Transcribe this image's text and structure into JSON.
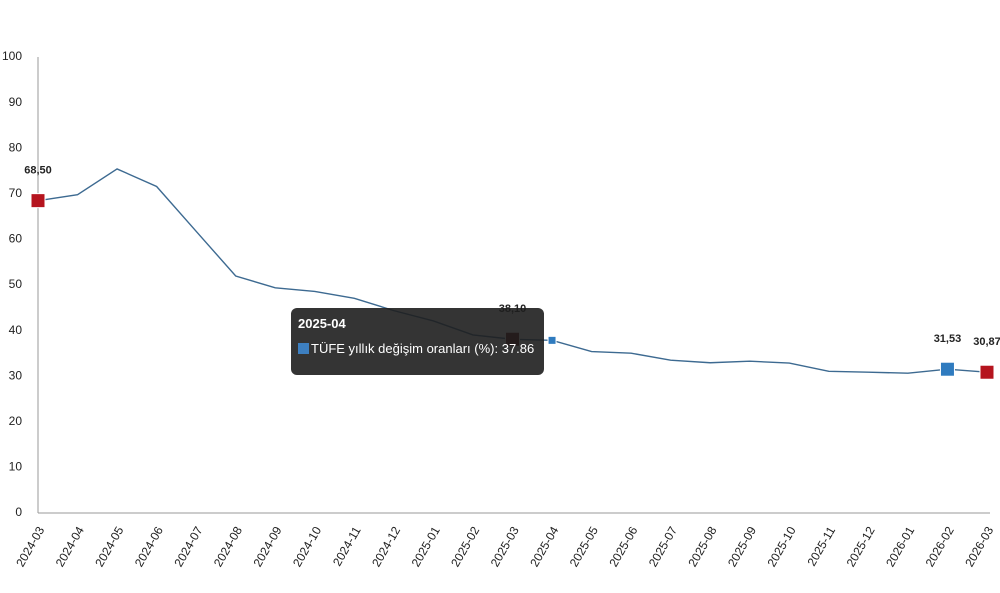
{
  "chart_data": {
    "type": "line",
    "categories": [
      "2024-03",
      "2024-04",
      "2024-05",
      "2024-06",
      "2024-07",
      "2024-08",
      "2024-09",
      "2024-10",
      "2024-11",
      "2024-12",
      "2025-01",
      "2025-02",
      "2025-03",
      "2025-04",
      "2025-05",
      "2025-06",
      "2025-07",
      "2025-08",
      "2025-09",
      "2025-10",
      "2025-11",
      "2025-12",
      "2026-01",
      "2026-02",
      "2026-03"
    ],
    "series": [
      {
        "name": "TÜFE yıllık değişim oranları (%)",
        "color": "#3d6a91",
        "values": [
          68.5,
          69.8,
          75.45,
          71.6,
          61.78,
          51.97,
          49.38,
          48.58,
          47.09,
          44.38,
          42.12,
          39.05,
          38.1,
          37.86,
          35.41,
          35.05,
          33.52,
          32.95,
          33.29,
          32.87,
          31.07,
          30.89,
          30.65,
          31.53,
          30.87
        ],
        "value_labels": [
          "68,50",
          null,
          null,
          null,
          null,
          null,
          null,
          null,
          null,
          null,
          null,
          null,
          "38,10",
          null,
          null,
          null,
          null,
          null,
          null,
          null,
          null,
          null,
          null,
          "31,53",
          "30,87"
        ],
        "marker_colors": [
          "#b5141e",
          null,
          null,
          null,
          null,
          null,
          null,
          null,
          null,
          null,
          null,
          null,
          "#5a0c10",
          "#2f7bbf",
          null,
          null,
          null,
          null,
          null,
          null,
          null,
          null,
          null,
          "#2f7bbf",
          "#b5141e"
        ]
      }
    ],
    "ylim": [
      0,
      100
    ],
    "yticks": [
      0,
      10,
      20,
      30,
      40,
      50,
      60,
      70,
      80,
      90,
      100
    ],
    "grid": false
  }
}
